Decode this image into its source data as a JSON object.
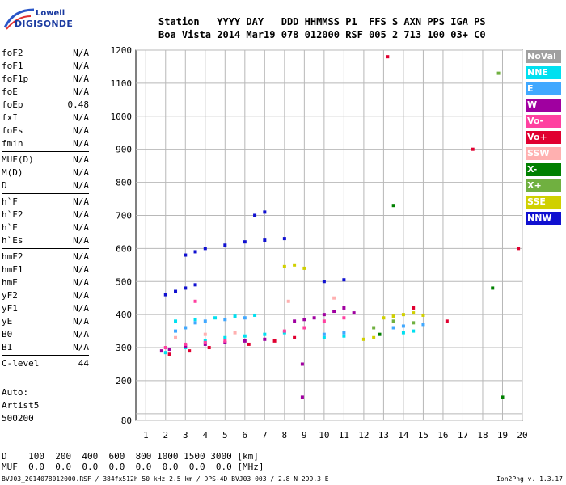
{
  "logo": {
    "line1": "Lowell",
    "line2": "DIGISONDE"
  },
  "header": {
    "labels": "Station   YYYY DAY   DDD HHMMSS P1  FFS S AXN PPS IGA PS",
    "values": "Boa Vista 2014 Mar19 078 012000 RSF 005 2 713 100 03+ C0"
  },
  "params": {
    "groups": [
      [
        {
          "name": "foF2",
          "value": "N/A"
        },
        {
          "name": "foF1",
          "value": "N/A"
        },
        {
          "name": "foF1p",
          "value": "N/A"
        },
        {
          "name": "foE",
          "value": "N/A"
        },
        {
          "name": "foEp",
          "value": "0.48"
        },
        {
          "name": "fxI",
          "value": "N/A"
        },
        {
          "name": "foEs",
          "value": "N/A"
        },
        {
          "name": "fmin",
          "value": "N/A"
        }
      ],
      [
        {
          "name": "MUF(D)",
          "value": "N/A"
        },
        {
          "name": "M(D)",
          "value": "N/A"
        },
        {
          "name": "D",
          "value": "N/A"
        }
      ],
      [
        {
          "name": "h`F",
          "value": "N/A"
        },
        {
          "name": "h`F2",
          "value": "N/A"
        },
        {
          "name": "h`E",
          "value": "N/A"
        },
        {
          "name": "h`Es",
          "value": "N/A"
        }
      ],
      [
        {
          "name": "hmF2",
          "value": "N/A"
        },
        {
          "name": "hmF1",
          "value": "N/A"
        },
        {
          "name": "hmE",
          "value": "N/A"
        },
        {
          "name": "yF2",
          "value": "N/A"
        },
        {
          "name": "yF1",
          "value": "N/A"
        },
        {
          "name": "yE",
          "value": "N/A"
        },
        {
          "name": "B0",
          "value": "N/A"
        },
        {
          "name": "B1",
          "value": "N/A"
        }
      ],
      [
        {
          "name": "C-level",
          "value": "44"
        }
      ]
    ]
  },
  "auto": {
    "line1": "Auto:",
    "line2": "Artist5",
    "line3": "500200"
  },
  "legend": [
    {
      "label": "NoVal",
      "color": "#a0a0a0"
    },
    {
      "label": "NNE",
      "color": "#00e0f0"
    },
    {
      "label": "E",
      "color": "#40a8ff"
    },
    {
      "label": "W",
      "color": "#a000a0"
    },
    {
      "label": "Vo-",
      "color": "#ff40a0"
    },
    {
      "label": "Vo+",
      "color": "#e00030"
    },
    {
      "label": "SSW",
      "color": "#ffb0b0"
    },
    {
      "label": "X-",
      "color": "#008000"
    },
    {
      "label": "X+",
      "color": "#70b040"
    },
    {
      "label": "SSE",
      "color": "#d0d000"
    },
    {
      "label": "NNW",
      "color": "#1010d0"
    }
  ],
  "chart_data": {
    "type": "scatter",
    "xlim": [
      0.5,
      20
    ],
    "ylim": [
      80,
      1200
    ],
    "x_ticks": [
      1,
      2,
      3,
      4,
      5,
      6,
      7,
      8,
      9,
      10,
      11,
      12,
      13,
      14,
      15,
      16,
      17,
      18,
      19,
      20
    ],
    "y_ticks": [
      80,
      100,
      200,
      300,
      400,
      500,
      600,
      700,
      800,
      900,
      1000,
      1100,
      1200
    ],
    "y_tick_labels": [
      "80",
      "",
      "200",
      "300",
      "400",
      "500",
      "600",
      "700",
      "800",
      "900",
      "1000",
      "1100",
      "1200"
    ],
    "grid": true,
    "series": [
      {
        "color_key": "NNE",
        "points": [
          [
            2.0,
            285
          ],
          [
            3.0,
            300
          ],
          [
            4.0,
            320
          ],
          [
            5.0,
            330
          ],
          [
            6.0,
            335
          ],
          [
            7.0,
            340
          ],
          [
            8.0,
            345
          ],
          [
            2.5,
            380
          ],
          [
            3.5,
            385
          ],
          [
            4.5,
            390
          ],
          [
            5.5,
            395
          ],
          [
            6.5,
            398
          ],
          [
            10.0,
            330
          ],
          [
            11.0,
            335
          ],
          [
            14.0,
            345
          ],
          [
            14.5,
            350
          ]
        ]
      },
      {
        "color_key": "E",
        "points": [
          [
            2.5,
            350
          ],
          [
            3.0,
            360
          ],
          [
            3.5,
            375
          ],
          [
            4.0,
            380
          ],
          [
            5.0,
            385
          ],
          [
            6.0,
            390
          ],
          [
            10.0,
            340
          ],
          [
            11.0,
            345
          ],
          [
            13.5,
            360
          ],
          [
            14.0,
            365
          ],
          [
            15.0,
            370
          ]
        ]
      },
      {
        "color_key": "W",
        "points": [
          [
            1.8,
            290
          ],
          [
            2.2,
            295
          ],
          [
            3.0,
            305
          ],
          [
            4.0,
            310
          ],
          [
            5.0,
            315
          ],
          [
            6.0,
            320
          ],
          [
            7.0,
            325
          ],
          [
            8.5,
            380
          ],
          [
            9.0,
            385
          ],
          [
            9.5,
            390
          ],
          [
            10.0,
            400
          ],
          [
            10.5,
            410
          ],
          [
            11.0,
            420
          ],
          [
            11.5,
            405
          ],
          [
            8.9,
            250
          ],
          [
            8.9,
            150
          ]
        ]
      },
      {
        "color_key": "Vo-",
        "points": [
          [
            2.0,
            300
          ],
          [
            3.0,
            310
          ],
          [
            4.0,
            315
          ],
          [
            5.0,
            320
          ],
          [
            8.0,
            350
          ],
          [
            9.0,
            360
          ],
          [
            10.0,
            380
          ],
          [
            11.0,
            390
          ],
          [
            3.5,
            440
          ]
        ]
      },
      {
        "color_key": "Vo+",
        "points": [
          [
            2.2,
            280
          ],
          [
            3.2,
            290
          ],
          [
            4.2,
            300
          ],
          [
            6.2,
            310
          ],
          [
            7.5,
            320
          ],
          [
            8.5,
            330
          ],
          [
            13.2,
            1180
          ],
          [
            14.5,
            420
          ],
          [
            16.2,
            380
          ],
          [
            17.5,
            900
          ],
          [
            19.8,
            600
          ]
        ]
      },
      {
        "color_key": "SSW",
        "points": [
          [
            2.5,
            330
          ],
          [
            4.0,
            340
          ],
          [
            5.5,
            345
          ],
          [
            8.2,
            440
          ],
          [
            10.5,
            450
          ]
        ]
      },
      {
        "color_key": "X-",
        "points": [
          [
            13.5,
            730
          ],
          [
            12.8,
            340
          ],
          [
            18.5,
            480
          ],
          [
            19.0,
            150
          ]
        ]
      },
      {
        "color_key": "X+",
        "points": [
          [
            12.5,
            360
          ],
          [
            13.5,
            380
          ],
          [
            14.5,
            375
          ],
          [
            18.8,
            1130
          ]
        ]
      },
      {
        "color_key": "SSE",
        "points": [
          [
            8.0,
            545
          ],
          [
            8.5,
            550
          ],
          [
            9.0,
            540
          ],
          [
            13.0,
            390
          ],
          [
            13.5,
            395
          ],
          [
            14.0,
            400
          ],
          [
            14.5,
            405
          ],
          [
            15.0,
            398
          ],
          [
            12.0,
            325
          ],
          [
            12.5,
            330
          ]
        ]
      },
      {
        "color_key": "NNW",
        "points": [
          [
            2.0,
            460
          ],
          [
            2.5,
            470
          ],
          [
            3.0,
            480
          ],
          [
            3.5,
            490
          ],
          [
            3.0,
            580
          ],
          [
            3.5,
            590
          ],
          [
            4.0,
            600
          ],
          [
            5.0,
            610
          ],
          [
            6.0,
            620
          ],
          [
            7.0,
            625
          ],
          [
            8.0,
            630
          ],
          [
            10.0,
            500
          ],
          [
            11.0,
            505
          ],
          [
            6.5,
            700
          ],
          [
            7.0,
            710
          ]
        ]
      }
    ]
  },
  "range_table": {
    "row1": "D    100  200  400  600  800 1000 1500 3000 [km]",
    "row2": "MUF  0.0  0.0  0.0  0.0  0.0  0.0  0.0  0.0 [MHz]"
  },
  "footer": {
    "left": "BVJ03_2014078012000.RSF / 384fx512h 50 kHz 2.5 km / DPS-4D BVJ03 003 / 2.8 N 299.3 E",
    "right": "Ion2Png v. 1.3.17"
  }
}
